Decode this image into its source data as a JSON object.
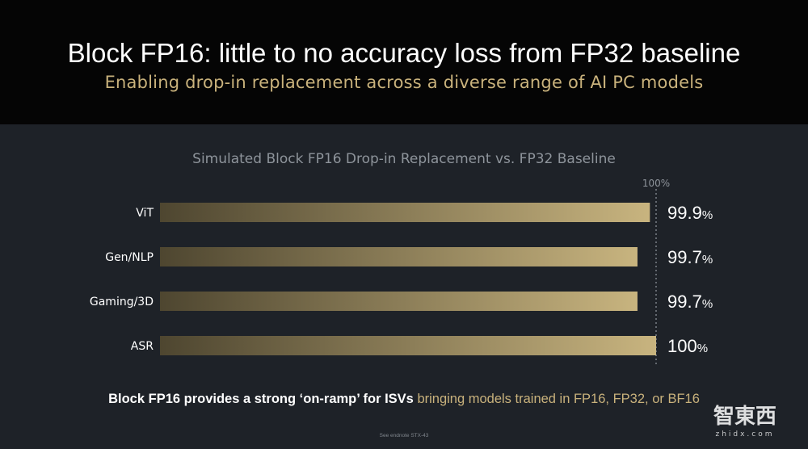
{
  "header": {
    "title": "Block FP16: little to no accuracy loss from FP32 baseline",
    "subtitle": "Enabling drop-in replacement across a diverse range of AI PC models"
  },
  "chart_data": {
    "type": "bar",
    "orientation": "horizontal",
    "title": "Simulated Block FP16 Drop-in Replacement vs. FP32 Baseline",
    "reference_label": "100%",
    "categories": [
      "ViT",
      "Gen/NLP",
      "Gaming/3D",
      "ASR"
    ],
    "values": [
      99.9,
      99.7,
      99.7,
      100
    ],
    "value_labels": [
      {
        "num": "99.9",
        "unit": "%"
      },
      {
        "num": "99.7",
        "unit": "%"
      },
      {
        "num": "99.7",
        "unit": "%"
      },
      {
        "num": "100",
        "unit": "%"
      }
    ],
    "xlim": [
      92,
      100
    ],
    "bar_color_start": "#4e4630",
    "bar_color_end": "#c8b47f"
  },
  "footer": {
    "text_white": "Block FP16 provides a strong ‘on-ramp’ for ISVs ",
    "text_gold": "bringing models trained in FP16, FP32, or BF16",
    "endnote": "See endnote STX-43"
  },
  "watermark": {
    "text": "智東西",
    "url_text": "zhidx.com"
  }
}
